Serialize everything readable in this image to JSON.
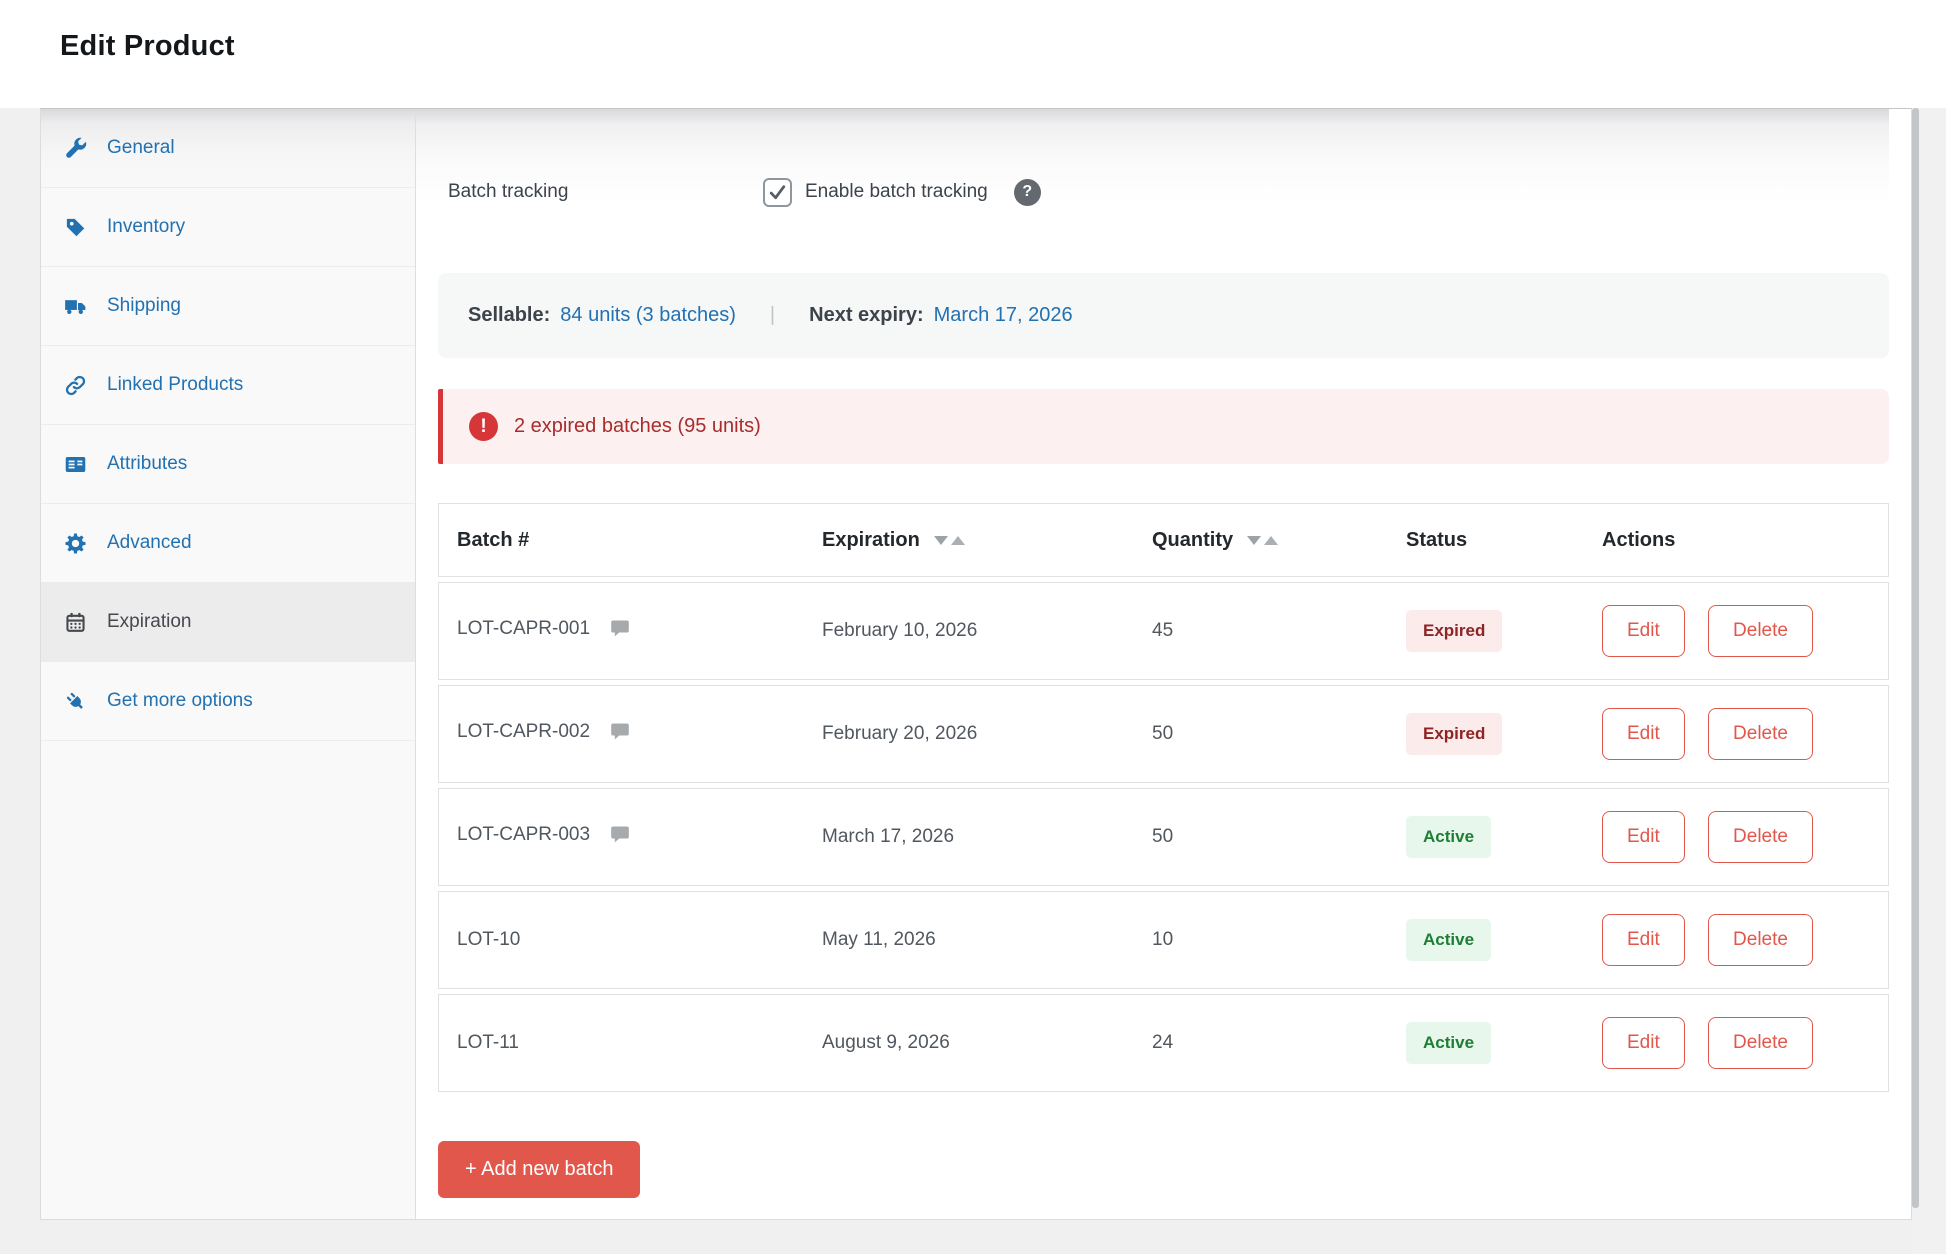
{
  "header": {
    "title": "Edit Product"
  },
  "sidebar": {
    "items": [
      {
        "label": "General",
        "icon": "wrench-icon",
        "active": false
      },
      {
        "label": "Inventory",
        "icon": "tag-icon",
        "active": false
      },
      {
        "label": "Shipping",
        "icon": "truck-icon",
        "active": false
      },
      {
        "label": "Linked Products",
        "icon": "link-icon",
        "active": false
      },
      {
        "label": "Attributes",
        "icon": "attributes-icon",
        "active": false
      },
      {
        "label": "Advanced",
        "icon": "gear-icon",
        "active": false
      },
      {
        "label": "Expiration",
        "icon": "calendar-icon",
        "active": true
      },
      {
        "label": "Get more options",
        "icon": "plug-icon",
        "active": false
      }
    ]
  },
  "batch_tracking": {
    "label": "Batch tracking",
    "checkbox_label": "Enable batch tracking",
    "checked": true,
    "help_glyph": "?"
  },
  "summary": {
    "sellable_label": "Sellable:",
    "sellable_value": "84 units (3 batches)",
    "divider": "|",
    "next_expiry_label": "Next expiry:",
    "next_expiry_value": "March 17, 2026"
  },
  "alert": {
    "icon_glyph": "!",
    "text": "2 expired batches (95 units)"
  },
  "table": {
    "columns": [
      {
        "label": "Batch #",
        "sortable": false
      },
      {
        "label": "Expiration",
        "sortable": true
      },
      {
        "label": "Quantity",
        "sortable": true
      },
      {
        "label": "Status",
        "sortable": false
      },
      {
        "label": "Actions",
        "sortable": false
      }
    ],
    "rows": [
      {
        "batch": "LOT-CAPR-001",
        "has_note": true,
        "expiration": "February 10, 2026",
        "quantity": "45",
        "status": "Expired",
        "status_type": "expired",
        "actions": [
          "Edit",
          "Delete"
        ]
      },
      {
        "batch": "LOT-CAPR-002",
        "has_note": true,
        "expiration": "February 20, 2026",
        "quantity": "50",
        "status": "Expired",
        "status_type": "expired",
        "actions": [
          "Edit",
          "Delete"
        ]
      },
      {
        "batch": "LOT-CAPR-003",
        "has_note": true,
        "expiration": "March 17, 2026",
        "quantity": "50",
        "status": "Active",
        "status_type": "active",
        "actions": [
          "Edit",
          "Delete"
        ]
      },
      {
        "batch": "LOT-10",
        "has_note": false,
        "expiration": "May 11, 2026",
        "quantity": "10",
        "status": "Active",
        "status_type": "active",
        "actions": [
          "Edit",
          "Delete"
        ]
      },
      {
        "batch": "LOT-11",
        "has_note": false,
        "expiration": "August 9, 2026",
        "quantity": "24",
        "status": "Active",
        "status_type": "active",
        "actions": [
          "Edit",
          "Delete"
        ]
      }
    ]
  },
  "add_button": {
    "label": "+ Add new batch"
  },
  "colors": {
    "accent_blue": "#2271b1",
    "danger_red": "#d63638",
    "action_red": "#e2574c",
    "expired_badge_bg": "#fcebeb",
    "expired_badge_text": "#8e2424",
    "active_badge_bg": "#e8f7ec",
    "active_badge_text": "#1e7e34",
    "alert_bg": "#fdf0f0",
    "alert_text": "#a82c2c",
    "summary_bg": "#f6f7f7"
  }
}
